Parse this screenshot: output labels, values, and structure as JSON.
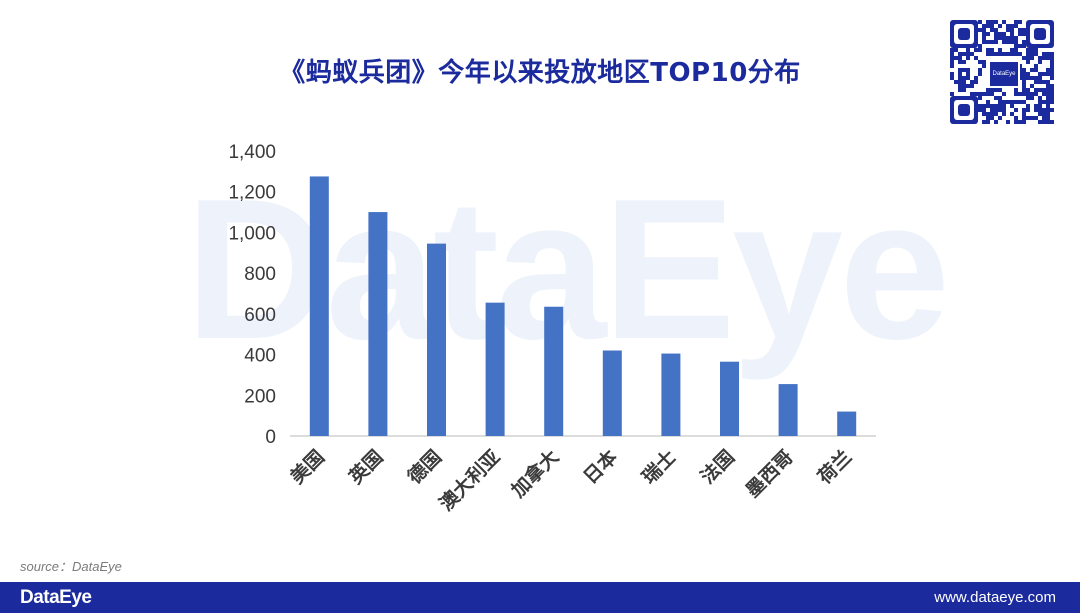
{
  "title": "《蚂蚁兵团》今年以来投放地区TOP10分布",
  "watermark": "DataEye",
  "qr_logo": "DataEye",
  "source": "source：DataEye",
  "footer": {
    "logo": "DataEye",
    "url": "www.dataeye.com"
  },
  "colors": {
    "bar": "#4472c4",
    "title": "#1b2a9c",
    "footer": "#1b2a9c"
  },
  "chart_data": {
    "type": "bar",
    "title": "《蚂蚁兵团》今年以来投放地区TOP10分布",
    "categories": [
      "美国",
      "英国",
      "德国",
      "澳大利亚",
      "加拿大",
      "日本",
      "瑞士",
      "法国",
      "墨西哥",
      "荷兰"
    ],
    "values": [
      1275,
      1100,
      945,
      655,
      635,
      420,
      405,
      365,
      255,
      120
    ],
    "ylim": [
      0,
      1400
    ],
    "yticks": [
      "0",
      "200",
      "400",
      "600",
      "800",
      "1,000",
      "1,200",
      "1,400"
    ],
    "ytick_values": [
      0,
      200,
      400,
      600,
      800,
      1000,
      1200,
      1400
    ],
    "xlabel": "",
    "ylabel": "",
    "grid": false,
    "legend": "none"
  }
}
